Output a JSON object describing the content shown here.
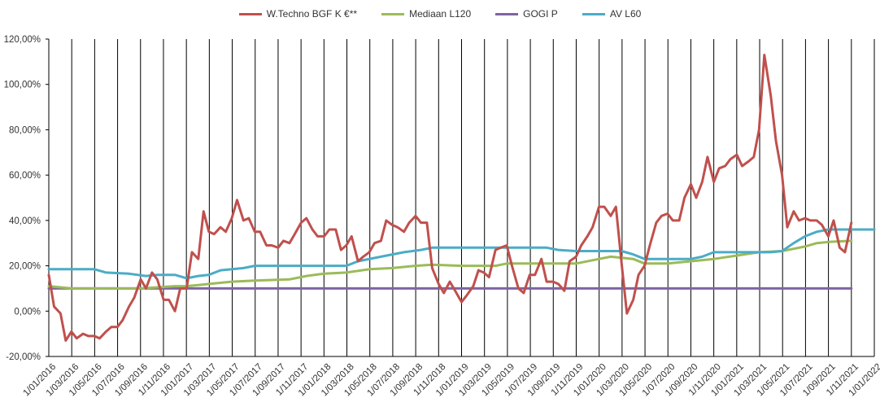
{
  "chart_data": {
    "type": "line",
    "title": "",
    "xlabel": "",
    "ylabel": "",
    "ylim": [
      -20,
      120
    ],
    "y_ticks": [
      -20,
      0,
      20,
      40,
      60,
      80,
      100,
      120
    ],
    "y_tick_labels": [
      "-20,00%",
      "0,00%",
      "20,00%",
      "40,00%",
      "60,00%",
      "80,00%",
      "100,00%",
      "120,00%"
    ],
    "x_range": [
      "2016-01-01",
      "2022-01-01"
    ],
    "x_tick_labels": [
      "1/01/2016",
      "1/03/2016",
      "1/05/2016",
      "1/07/2016",
      "1/09/2016",
      "1/11/2016",
      "1/01/2017",
      "1/03/2017",
      "1/05/2017",
      "1/07/2017",
      "1/09/2017",
      "1/11/2017",
      "1/01/2018",
      "1/03/2018",
      "1/05/2018",
      "1/07/2018",
      "1/09/2018",
      "1/11/2018",
      "1/01/2019",
      "1/03/2019",
      "1/05/2019",
      "1/07/2019",
      "1/09/2019",
      "1/11/2019",
      "1/01/2020",
      "1/03/2020",
      "1/05/2020",
      "1/07/2020",
      "1/09/2020",
      "1/11/2020",
      "1/01/2021",
      "1/03/2021",
      "1/05/2021",
      "1/07/2021",
      "1/09/2021",
      "1/11/2021",
      "1/01/2022"
    ],
    "gridlines": "vertical",
    "legend_position": "top-center",
    "series": [
      {
        "name": "W.Techno BGF K €**",
        "color": "#c0504d",
        "points": [
          [
            "2016-01-01",
            16
          ],
          [
            "2016-01-15",
            2
          ],
          [
            "2016-02-01",
            -1
          ],
          [
            "2016-02-15",
            -13
          ],
          [
            "2016-03-01",
            -9
          ],
          [
            "2016-03-15",
            -12
          ],
          [
            "2016-04-01",
            -10
          ],
          [
            "2016-04-15",
            -11
          ],
          [
            "2016-05-01",
            -11
          ],
          [
            "2016-05-15",
            -12
          ],
          [
            "2016-06-01",
            -9
          ],
          [
            "2016-06-15",
            -7
          ],
          [
            "2016-07-01",
            -7
          ],
          [
            "2016-07-15",
            -4
          ],
          [
            "2016-08-01",
            2
          ],
          [
            "2016-08-15",
            6
          ],
          [
            "2016-09-01",
            14
          ],
          [
            "2016-09-15",
            10
          ],
          [
            "2016-10-01",
            17
          ],
          [
            "2016-10-15",
            14
          ],
          [
            "2016-11-01",
            5
          ],
          [
            "2016-11-15",
            5
          ],
          [
            "2016-12-01",
            0
          ],
          [
            "2016-12-15",
            10
          ],
          [
            "2017-01-01",
            10
          ],
          [
            "2017-01-15",
            26
          ],
          [
            "2017-02-01",
            23
          ],
          [
            "2017-02-15",
            44
          ],
          [
            "2017-03-01",
            35
          ],
          [
            "2017-03-15",
            34
          ],
          [
            "2017-04-01",
            37
          ],
          [
            "2017-04-15",
            35
          ],
          [
            "2017-05-01",
            41
          ],
          [
            "2017-05-15",
            49
          ],
          [
            "2017-06-01",
            40
          ],
          [
            "2017-06-15",
            41
          ],
          [
            "2017-07-01",
            35
          ],
          [
            "2017-07-15",
            35
          ],
          [
            "2017-08-01",
            29
          ],
          [
            "2017-08-15",
            29
          ],
          [
            "2017-09-01",
            28
          ],
          [
            "2017-09-15",
            31
          ],
          [
            "2017-10-01",
            30
          ],
          [
            "2017-10-15",
            34
          ],
          [
            "2017-11-01",
            39
          ],
          [
            "2017-11-15",
            41
          ],
          [
            "2017-12-01",
            36
          ],
          [
            "2017-12-15",
            33
          ],
          [
            "2018-01-01",
            33
          ],
          [
            "2018-01-15",
            36
          ],
          [
            "2018-02-01",
            36
          ],
          [
            "2018-02-15",
            27
          ],
          [
            "2018-03-01",
            29
          ],
          [
            "2018-03-15",
            33
          ],
          [
            "2018-04-01",
            22
          ],
          [
            "2018-04-15",
            24
          ],
          [
            "2018-05-01",
            26
          ],
          [
            "2018-05-15",
            30
          ],
          [
            "2018-06-01",
            31
          ],
          [
            "2018-06-15",
            40
          ],
          [
            "2018-07-01",
            38
          ],
          [
            "2018-07-15",
            37
          ],
          [
            "2018-08-01",
            35
          ],
          [
            "2018-08-15",
            39
          ],
          [
            "2018-09-01",
            42
          ],
          [
            "2018-09-15",
            39
          ],
          [
            "2018-10-01",
            39
          ],
          [
            "2018-10-15",
            19
          ],
          [
            "2018-11-01",
            12
          ],
          [
            "2018-11-15",
            8
          ],
          [
            "2018-12-01",
            13
          ],
          [
            "2018-12-15",
            9
          ],
          [
            "2019-01-01",
            4
          ],
          [
            "2019-01-15",
            7
          ],
          [
            "2019-02-01",
            11
          ],
          [
            "2019-02-15",
            18
          ],
          [
            "2019-03-01",
            17
          ],
          [
            "2019-03-15",
            15
          ],
          [
            "2019-04-01",
            27
          ],
          [
            "2019-04-15",
            28
          ],
          [
            "2019-05-01",
            29
          ],
          [
            "2019-05-15",
            20
          ],
          [
            "2019-06-01",
            10
          ],
          [
            "2019-06-15",
            8
          ],
          [
            "2019-07-01",
            16
          ],
          [
            "2019-07-15",
            16
          ],
          [
            "2019-08-01",
            23
          ],
          [
            "2019-08-15",
            13
          ],
          [
            "2019-09-01",
            13
          ],
          [
            "2019-09-15",
            12
          ],
          [
            "2019-10-01",
            9
          ],
          [
            "2019-10-15",
            22
          ],
          [
            "2019-11-01",
            24
          ],
          [
            "2019-11-15",
            29
          ],
          [
            "2019-12-01",
            33
          ],
          [
            "2019-12-15",
            37
          ],
          [
            "2020-01-01",
            46
          ],
          [
            "2020-01-15",
            46
          ],
          [
            "2020-02-01",
            42
          ],
          [
            "2020-02-15",
            46
          ],
          [
            "2020-03-01",
            21
          ],
          [
            "2020-03-15",
            -1
          ],
          [
            "2020-04-01",
            5
          ],
          [
            "2020-04-15",
            16
          ],
          [
            "2020-05-01",
            20
          ],
          [
            "2020-05-15",
            29
          ],
          [
            "2020-06-01",
            39
          ],
          [
            "2020-06-15",
            42
          ],
          [
            "2020-07-01",
            43
          ],
          [
            "2020-07-15",
            40
          ],
          [
            "2020-08-01",
            40
          ],
          [
            "2020-08-15",
            50
          ],
          [
            "2020-09-01",
            56
          ],
          [
            "2020-09-15",
            50
          ],
          [
            "2020-10-01",
            57
          ],
          [
            "2020-10-15",
            68
          ],
          [
            "2020-11-01",
            57
          ],
          [
            "2020-11-15",
            63
          ],
          [
            "2020-12-01",
            64
          ],
          [
            "2020-12-15",
            67
          ],
          [
            "2021-01-01",
            69
          ],
          [
            "2021-01-15",
            64
          ],
          [
            "2021-02-01",
            66
          ],
          [
            "2021-02-15",
            68
          ],
          [
            "2021-03-01",
            80
          ],
          [
            "2021-03-15",
            113
          ],
          [
            "2021-04-01",
            95
          ],
          [
            "2021-04-15",
            75
          ],
          [
            "2021-05-01",
            60
          ],
          [
            "2021-05-15",
            37
          ],
          [
            "2021-06-01",
            44
          ],
          [
            "2021-06-15",
            40
          ],
          [
            "2021-07-01",
            41
          ],
          [
            "2021-07-15",
            40
          ],
          [
            "2021-08-01",
            40
          ],
          [
            "2021-08-15",
            38
          ],
          [
            "2021-09-01",
            33
          ],
          [
            "2021-09-15",
            40
          ],
          [
            "2021-10-01",
            28
          ],
          [
            "2021-10-15",
            26
          ],
          [
            "2021-11-01",
            39
          ]
        ]
      },
      {
        "name": "Mediaan L120",
        "color": "#9bbb59",
        "points": [
          [
            "2016-01-01",
            11
          ],
          [
            "2016-03-01",
            10
          ],
          [
            "2016-09-01",
            10
          ],
          [
            "2016-12-01",
            11
          ],
          [
            "2017-01-01",
            11
          ],
          [
            "2017-03-01",
            12
          ],
          [
            "2017-05-01",
            13
          ],
          [
            "2017-07-01",
            13.5
          ],
          [
            "2017-10-01",
            14
          ],
          [
            "2017-11-15",
            15.5
          ],
          [
            "2018-01-01",
            16.5
          ],
          [
            "2018-03-01",
            17
          ],
          [
            "2018-05-01",
            18.5
          ],
          [
            "2018-07-01",
            19
          ],
          [
            "2018-09-01",
            20
          ],
          [
            "2018-10-15",
            20.5
          ],
          [
            "2019-01-01",
            20
          ],
          [
            "2019-04-01",
            20
          ],
          [
            "2019-05-01",
            21
          ],
          [
            "2019-07-01",
            21
          ],
          [
            "2019-11-01",
            21
          ],
          [
            "2020-01-01",
            23
          ],
          [
            "2020-02-01",
            24
          ],
          [
            "2020-04-01",
            23
          ],
          [
            "2020-05-01",
            21
          ],
          [
            "2020-07-01",
            21
          ],
          [
            "2020-09-01",
            22
          ],
          [
            "2020-11-01",
            23
          ],
          [
            "2021-01-01",
            24.5
          ],
          [
            "2021-03-01",
            26
          ],
          [
            "2021-05-01",
            26.5
          ],
          [
            "2021-06-01",
            27.5
          ],
          [
            "2021-07-01",
            28.5
          ],
          [
            "2021-08-01",
            30
          ],
          [
            "2021-09-01",
            30.5
          ],
          [
            "2021-11-01",
            31
          ]
        ]
      },
      {
        "name": "GOGI P",
        "color": "#8064a2",
        "points": [
          [
            "2016-01-01",
            10
          ],
          [
            "2021-11-01",
            10
          ]
        ]
      },
      {
        "name": "AV L60",
        "color": "#4bacc6",
        "points": [
          [
            "2016-01-01",
            18.5
          ],
          [
            "2016-05-01",
            18.5
          ],
          [
            "2016-06-01",
            17
          ],
          [
            "2016-08-01",
            16.5
          ],
          [
            "2016-09-15",
            15.5
          ],
          [
            "2016-10-15",
            16
          ],
          [
            "2016-12-01",
            16
          ],
          [
            "2017-01-01",
            14.5
          ],
          [
            "2017-02-01",
            15.5
          ],
          [
            "2017-03-01",
            16
          ],
          [
            "2017-04-01",
            18
          ],
          [
            "2017-06-01",
            19
          ],
          [
            "2017-07-01",
            20
          ],
          [
            "2018-01-01",
            20
          ],
          [
            "2018-03-01",
            20
          ],
          [
            "2018-04-01",
            22
          ],
          [
            "2018-06-01",
            24
          ],
          [
            "2018-08-01",
            26
          ],
          [
            "2018-09-15",
            27
          ],
          [
            "2018-10-15",
            28
          ],
          [
            "2019-07-01",
            28
          ],
          [
            "2019-08-15",
            28
          ],
          [
            "2019-09-15",
            27
          ],
          [
            "2019-11-01",
            26.5
          ],
          [
            "2020-03-01",
            26.5
          ],
          [
            "2020-04-01",
            25
          ],
          [
            "2020-05-01",
            23
          ],
          [
            "2020-09-01",
            23
          ],
          [
            "2020-10-01",
            24
          ],
          [
            "2020-11-01",
            26
          ],
          [
            "2021-04-01",
            26
          ],
          [
            "2021-05-01",
            26.5
          ],
          [
            "2021-06-01",
            30
          ],
          [
            "2021-07-01",
            33
          ],
          [
            "2021-08-01",
            35
          ],
          [
            "2021-09-01",
            36
          ],
          [
            "2021-11-01",
            36
          ],
          [
            "2022-01-01",
            36
          ]
        ]
      }
    ]
  }
}
